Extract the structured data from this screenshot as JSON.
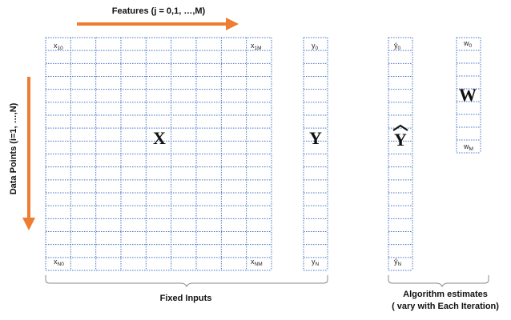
{
  "diagram": {
    "features_label": "Features (j = 0,1, …,M)",
    "datapoints_label": "Data Points (i=1, …,N)",
    "fixed_inputs_label": "Fixed Inputs",
    "algorithm_label_line1": "Algorithm estimates",
    "algorithm_label_line2": "( vary with Each Iteration)",
    "matrix_x": {
      "symbol": "X",
      "top_left": "x",
      "top_left_sub": "10",
      "top_right": "x",
      "top_right_sub": "1M",
      "bottom_left": "x",
      "bottom_left_sub": "N0",
      "bottom_right": "x",
      "bottom_right_sub": "NM"
    },
    "vector_y": {
      "symbol": "Y",
      "top": "y",
      "top_sub": "0",
      "bottom": "y",
      "bottom_sub": "N"
    },
    "vector_yhat": {
      "symbol": "Y",
      "top": "ŷ",
      "top_sub": "0",
      "bottom": "ŷ",
      "bottom_sub": "N"
    },
    "vector_w": {
      "symbol": "W",
      "top": "w",
      "top_sub": "0",
      "bottom": "w",
      "bottom_sub": "M"
    },
    "colors": {
      "arrow": "#ED7D31",
      "grid": "#4472C4",
      "brace": "#888888"
    }
  }
}
